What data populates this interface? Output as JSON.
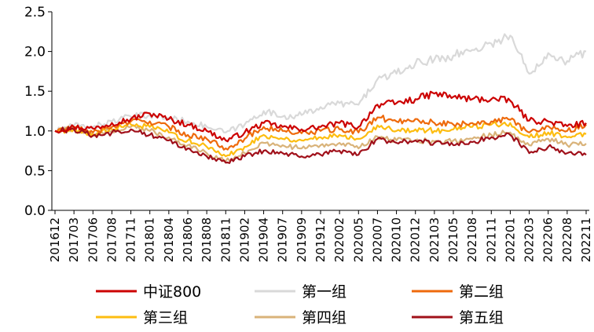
{
  "chart_data": {
    "type": "line",
    "title": "",
    "xlabel": "",
    "ylabel": "",
    "ylim": [
      0,
      2.5
    ],
    "yticks": [
      {
        "value": 0.0,
        "label": "0.0"
      },
      {
        "value": 0.5,
        "label": "0.5"
      },
      {
        "value": 1.0,
        "label": "1.0"
      },
      {
        "value": 1.5,
        "label": "1.5"
      },
      {
        "value": 2.0,
        "label": "2.0"
      },
      {
        "value": 2.5,
        "label": "2.5"
      }
    ],
    "x": [
      "201612",
      "201703",
      "201706",
      "201708",
      "201711",
      "201801",
      "201804",
      "201806",
      "201808",
      "201811",
      "201902",
      "201904",
      "201907",
      "201909",
      "201912",
      "202002",
      "202005",
      "202007",
      "202010",
      "202012",
      "202103",
      "202105",
      "202108",
      "202111",
      "202201",
      "202203",
      "202206",
      "202208",
      "202211"
    ],
    "grid": false,
    "legend_position": "bottom",
    "series": [
      {
        "name": "中证800",
        "color": "#cc0000",
        "values": [
          1.0,
          1.05,
          1.03,
          1.1,
          1.15,
          1.22,
          1.15,
          1.08,
          1.0,
          0.88,
          0.98,
          1.1,
          1.05,
          1.02,
          1.05,
          1.1,
          1.05,
          1.33,
          1.35,
          1.4,
          1.47,
          1.43,
          1.4,
          1.4,
          1.38,
          1.13,
          1.12,
          1.06,
          1.1
        ]
      },
      {
        "name": "第一组",
        "color": "#d9d9d9",
        "values": [
          1.0,
          1.07,
          1.05,
          1.12,
          1.18,
          1.2,
          1.16,
          1.12,
          1.05,
          0.98,
          1.08,
          1.25,
          1.18,
          1.2,
          1.3,
          1.35,
          1.33,
          1.65,
          1.72,
          1.85,
          1.9,
          1.95,
          2.02,
          2.1,
          2.2,
          1.72,
          1.98,
          1.88,
          2.0
        ]
      },
      {
        "name": "第二组",
        "color": "#ee6a0c",
        "values": [
          1.0,
          1.04,
          0.98,
          1.05,
          1.12,
          1.12,
          1.05,
          0.95,
          0.9,
          0.78,
          0.9,
          1.05,
          1.0,
          0.97,
          1.0,
          1.02,
          0.98,
          1.17,
          1.12,
          1.15,
          1.1,
          1.08,
          1.1,
          1.12,
          1.14,
          0.98,
          1.06,
          1.0,
          1.08
        ]
      },
      {
        "name": "第三组",
        "color": "#fdbd10",
        "values": [
          1.0,
          1.02,
          0.96,
          1.02,
          1.08,
          1.05,
          0.98,
          0.88,
          0.8,
          0.68,
          0.8,
          0.95,
          0.9,
          0.88,
          0.92,
          0.95,
          0.9,
          1.07,
          1.0,
          1.02,
          1.0,
          1.02,
          1.05,
          1.08,
          1.1,
          0.92,
          0.98,
          0.92,
          0.96
        ]
      },
      {
        "name": "第四组",
        "color": "#d9b37a",
        "values": [
          1.0,
          1.03,
          0.95,
          1.0,
          1.05,
          1.0,
          0.92,
          0.82,
          0.72,
          0.62,
          0.72,
          0.85,
          0.82,
          0.78,
          0.82,
          0.85,
          0.78,
          0.93,
          0.88,
          0.88,
          0.87,
          0.88,
          0.9,
          0.95,
          0.98,
          0.82,
          0.9,
          0.82,
          0.84
        ]
      },
      {
        "name": "第五组",
        "color": "#a0101a",
        "values": [
          1.0,
          1.02,
          0.94,
          0.98,
          1.02,
          0.95,
          0.88,
          0.78,
          0.68,
          0.6,
          0.68,
          0.75,
          0.72,
          0.68,
          0.7,
          0.75,
          0.7,
          0.9,
          0.85,
          0.88,
          0.85,
          0.82,
          0.86,
          0.92,
          0.95,
          0.72,
          0.8,
          0.72,
          0.7
        ]
      }
    ]
  }
}
